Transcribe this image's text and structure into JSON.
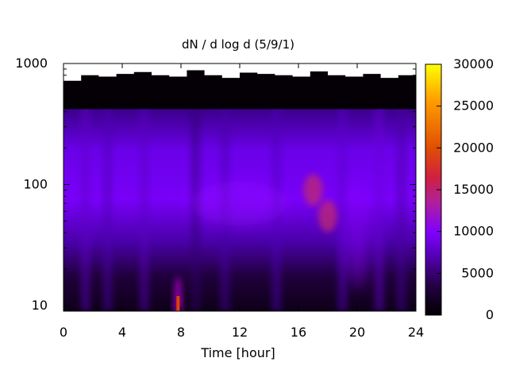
{
  "chart_data": {
    "type": "heatmap",
    "title": "dN / d log d (5/9/1)",
    "xlabel": "Time [hour]",
    "ylabel": "",
    "x_range": [
      0,
      24
    ],
    "x_ticks": [
      0,
      4,
      8,
      12,
      16,
      20,
      24
    ],
    "y_scale": "log",
    "y_range": [
      9,
      1000
    ],
    "y_ticks": [
      10,
      100,
      1000
    ],
    "colorbar": {
      "range": [
        0,
        30000
      ],
      "ticks": [
        0,
        5000,
        10000,
        15000,
        20000,
        25000,
        30000
      ],
      "palette": [
        "#000000",
        "#3c0070",
        "#8000ff",
        "#c8288c",
        "#e05000",
        "#ff9000",
        "#ffff00"
      ]
    },
    "upper_data_limit_diameter": [
      720,
      800,
      780,
      820,
      850,
      800,
      780,
      880,
      800,
      760,
      840,
      820,
      800,
      780,
      860,
      800,
      780,
      820,
      760,
      800
    ],
    "features": [
      {
        "time": 7.8,
        "diameter": 10,
        "value": 20000
      },
      {
        "time": 17.0,
        "diameter": 90,
        "value": 13000
      },
      {
        "time": 18.0,
        "diameter": 55,
        "value": 12000
      },
      {
        "time": 12.0,
        "diameter": 70,
        "value": 8000
      }
    ]
  }
}
